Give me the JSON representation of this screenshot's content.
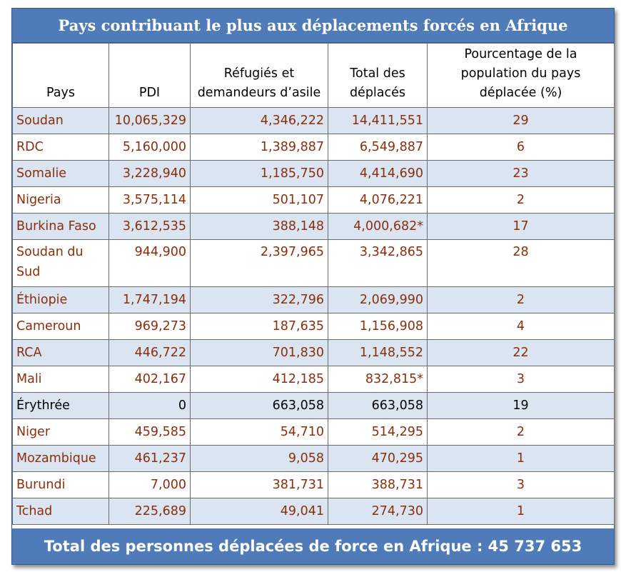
{
  "title": "Pays contribuant le plus aux déplacements forcés en Afrique",
  "headers": {
    "country": "Pays",
    "pdi": "PDI",
    "refugees": "Réfugiés et demandeurs d’asile",
    "total": "Total des déplacés",
    "percent": "Pourcentage de la population du pays déplacée (%)"
  },
  "rows": [
    {
      "country": "Soudan",
      "pdi": "10,065,329",
      "refugees": "4,346,222",
      "total": "14,411,551",
      "percent": "29"
    },
    {
      "country": "RDC",
      "pdi": "5,160,000",
      "refugees": "1,389,887",
      "total": "6,549,887",
      "percent": "6"
    },
    {
      "country": "Somalie",
      "pdi": "3,228,940",
      "refugees": "1,185,750",
      "total": "4,414,690",
      "percent": "23"
    },
    {
      "country": "Nigeria",
      "pdi": "3,575,114",
      "refugees": "501,107",
      "total": "4,076,221",
      "percent": "2"
    },
    {
      "country": "Burkina Faso",
      "pdi": "3,612,535",
      "refugees": "388,148",
      "total": "4,000,682*",
      "percent": "17"
    },
    {
      "country": "Soudan du Sud",
      "pdi": "944,900",
      "refugees": "2,397,965",
      "total": "3,342,865",
      "percent": "28"
    },
    {
      "country": "Éthiopie",
      "pdi": "1,747,194",
      "refugees": "322,796",
      "total": "2,069,990",
      "percent": "2"
    },
    {
      "country": "Cameroun",
      "pdi": "969,273",
      "refugees": "187,635",
      "total": "1,156,908",
      "percent": "4"
    },
    {
      "country": "RCA",
      "pdi": "446,722",
      "refugees": "701,830",
      "total": "1,148,552",
      "percent": "22"
    },
    {
      "country": "Mali",
      "pdi": "402,167",
      "refugees": "412,185",
      "total": "832,815*",
      "percent": "3"
    },
    {
      "country": "Érythrée",
      "pdi": "0",
      "refugees": "663,058",
      "total": "663,058",
      "percent": "19"
    },
    {
      "country": "Niger",
      "pdi": "459,585",
      "refugees": "54,710",
      "total": "514,295",
      "percent": "2"
    },
    {
      "country": "Mozambique",
      "pdi": "461,237",
      "refugees": "9,058",
      "total": "470,295",
      "percent": "1"
    },
    {
      "country": "Burundi",
      "pdi": "7,000",
      "refugees": "381,731",
      "total": "388,731",
      "percent": "3"
    },
    {
      "country": "Tchad",
      "pdi": "225,689",
      "refugees": "49,041",
      "total": "274,730",
      "percent": "1"
    }
  ],
  "footer": "Total des personnes déplacées de force en Afrique : 45 737 653",
  "colors": {
    "header_blue": "#4f7bb8",
    "row_shade": "#dbe4f1",
    "text_red": "#8b2e0c"
  }
}
